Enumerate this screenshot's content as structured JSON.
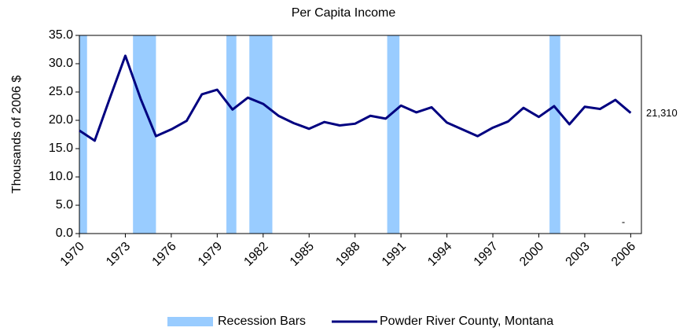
{
  "chart_data": {
    "type": "line",
    "title": "Per Capita Income",
    "y_label": "Thousands of 2006 $",
    "x": [
      1970,
      1971,
      1972,
      1973,
      1974,
      1975,
      1976,
      1977,
      1978,
      1979,
      1980,
      1981,
      1982,
      1983,
      1984,
      1985,
      1986,
      1987,
      1988,
      1989,
      1990,
      1991,
      1992,
      1993,
      1994,
      1995,
      1996,
      1997,
      1998,
      1999,
      2000,
      2001,
      2002,
      2003,
      2004,
      2005,
      2006
    ],
    "series": [
      {
        "name": "Powder River County, Montana",
        "color": "#000080",
        "values": [
          18.2,
          16.4,
          24.0,
          31.4,
          23.8,
          17.2,
          18.4,
          19.9,
          24.6,
          25.4,
          21.9,
          24.0,
          22.9,
          20.8,
          19.5,
          18.5,
          19.7,
          19.1,
          19.4,
          20.8,
          20.3,
          22.6,
          21.4,
          22.3,
          19.6,
          18.4,
          17.2,
          18.7,
          19.8,
          22.2,
          20.6,
          22.5,
          19.3,
          22.4,
          22.0,
          23.6,
          21.31
        ],
        "value_labels": [
          null,
          null,
          null,
          null,
          null,
          null,
          null,
          null,
          null,
          null,
          null,
          null,
          null,
          null,
          null,
          null,
          null,
          null,
          null,
          null,
          null,
          null,
          null,
          null,
          null,
          null,
          null,
          null,
          null,
          null,
          null,
          null,
          null,
          null,
          null,
          null,
          "21,310"
        ]
      }
    ],
    "recessions": {
      "name": "Recession Bars",
      "color": "#99ccff",
      "ranges": [
        {
          "start": 1970,
          "end": 1970.5
        },
        {
          "start": 1973.5,
          "end": 1975
        },
        {
          "start": 1979.6,
          "end": 1980.25
        },
        {
          "start": 1981.1,
          "end": 1982.6
        },
        {
          "start": 1990.1,
          "end": 1990.9
        },
        {
          "start": 2000.7,
          "end": 2001.4
        }
      ]
    },
    "annotation": "-",
    "xlim": [
      1970,
      2006.7
    ],
    "xticks": [
      1970,
      1973,
      1976,
      1979,
      1982,
      1985,
      1988,
      1991,
      1994,
      1997,
      2000,
      2003,
      2006
    ],
    "ylim": [
      0,
      35
    ],
    "yticks": [
      {
        "value": 0,
        "label": "0.0"
      },
      {
        "value": 5,
        "label": "5.0"
      },
      {
        "value": 10,
        "label": "10.0"
      },
      {
        "value": 15,
        "label": "15.0"
      },
      {
        "value": 20,
        "label": "20.0"
      },
      {
        "value": 25,
        "label": "25.0"
      },
      {
        "value": 30,
        "label": "30.0"
      },
      {
        "value": 35,
        "label": "35.0"
      }
    ],
    "legend": "bottom"
  }
}
